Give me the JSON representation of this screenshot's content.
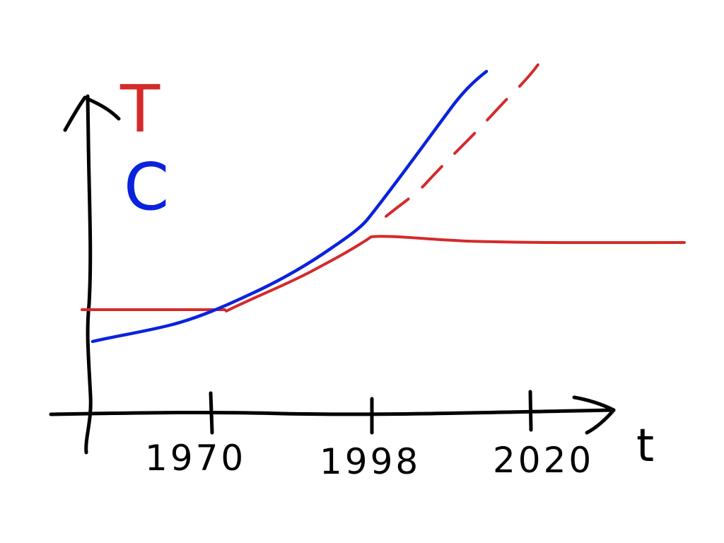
{
  "legend": {
    "t_label": "T",
    "c_label": "C"
  },
  "axes": {
    "x_label": "t",
    "ticks": [
      "1970",
      "1998",
      "2020"
    ]
  },
  "colors": {
    "axis": "#000000",
    "t_series": "#d42a2a",
    "c_series": "#0a22dd"
  }
}
